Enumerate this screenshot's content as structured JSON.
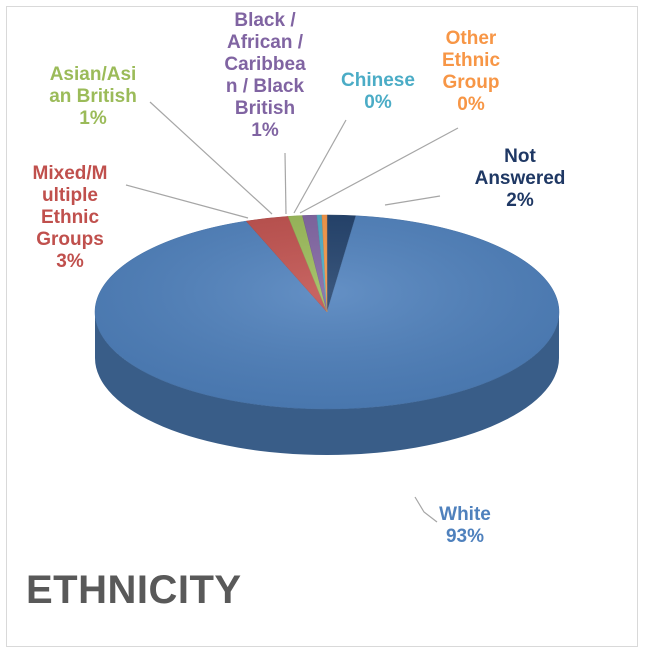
{
  "chart_data": {
    "type": "pie",
    "title": "ETHNICITY",
    "slices": [
      {
        "name": "Not Answered",
        "value": 2,
        "label_lines": [
          "Not",
          "Answered",
          "2%"
        ],
        "color": "#1F3F6A",
        "label_color": "#1F3864"
      },
      {
        "name": "White",
        "value": 93,
        "label_lines": [
          "White",
          "93%"
        ],
        "color": "#4F81BD",
        "label_color": "#4F81BD"
      },
      {
        "name": "Mixed/Multiple Ethnic Groups",
        "value": 3,
        "label_lines": [
          "Mixed/M",
          "ultiple",
          "Ethnic",
          "Groups",
          "3%"
        ],
        "color": "#C0504D",
        "label_color": "#C0504D"
      },
      {
        "name": "Asian/Asian British",
        "value": 1,
        "label_lines": [
          "Asian/Asi",
          "an British",
          "1%"
        ],
        "color": "#9BBB59",
        "label_color": "#9BBB59"
      },
      {
        "name": "Black / African / Caribbean / Black British",
        "value": 1,
        "label_lines": [
          "Black /",
          "African /",
          "Caribbea",
          "n / Black",
          "British",
          "1%"
        ],
        "color": "#8064A2",
        "label_color": "#8064A2"
      },
      {
        "name": "Chinese",
        "value": 0,
        "label_lines": [
          "Chinese",
          "0%"
        ],
        "color": "#4BACC6",
        "label_color": "#4BACC6"
      },
      {
        "name": "Other Ethnic Group",
        "value": 0,
        "label_lines": [
          "Other",
          "Ethnic",
          "Group",
          "0%"
        ],
        "color": "#F79646",
        "label_color": "#F79646"
      }
    ]
  }
}
